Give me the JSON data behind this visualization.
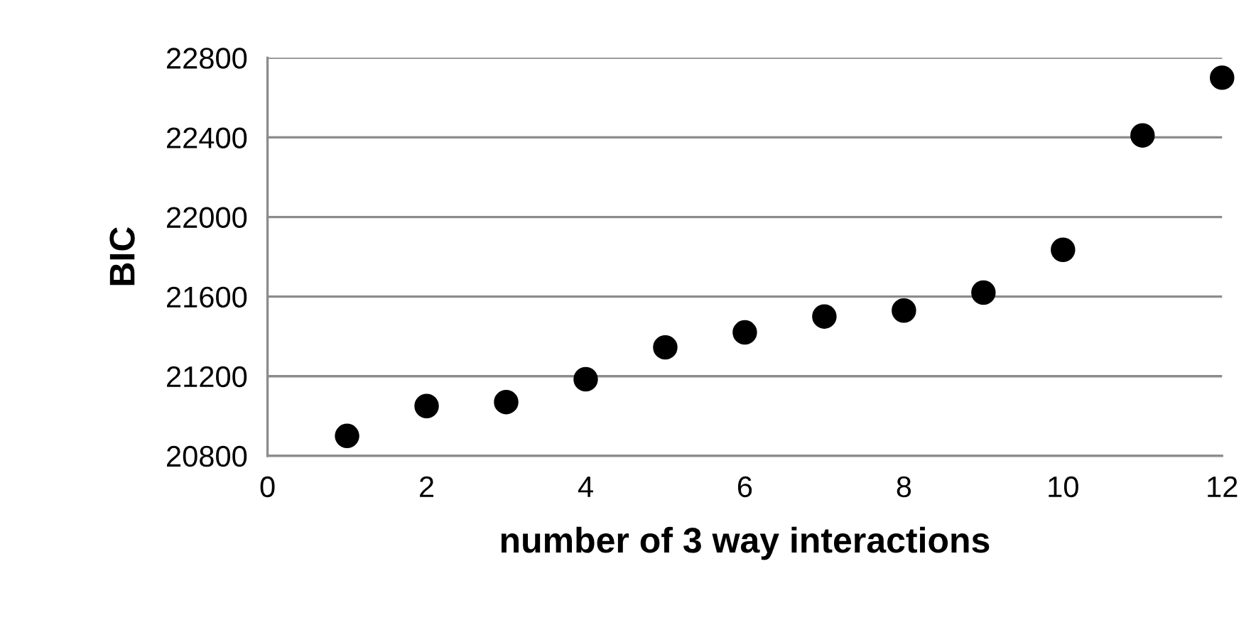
{
  "chart_data": {
    "type": "scatter",
    "xlabel": "number of 3 way interactions",
    "ylabel": "BIC",
    "x": [
      1,
      2,
      3,
      4,
      5,
      6,
      7,
      8,
      9,
      10,
      11,
      12
    ],
    "values": [
      20900,
      21050,
      21070,
      21185,
      21345,
      21420,
      21500,
      21530,
      21620,
      21835,
      22410,
      22700
    ],
    "color": "#000000",
    "marker": "circle",
    "xlim": [
      0,
      12
    ],
    "xticks": [
      0,
      2,
      4,
      6,
      8,
      10,
      12
    ],
    "ylim": [
      20800,
      22800
    ],
    "yticks": [
      20800,
      21200,
      21600,
      22000,
      22400,
      22800
    ],
    "grid": "y",
    "legend": false
  }
}
